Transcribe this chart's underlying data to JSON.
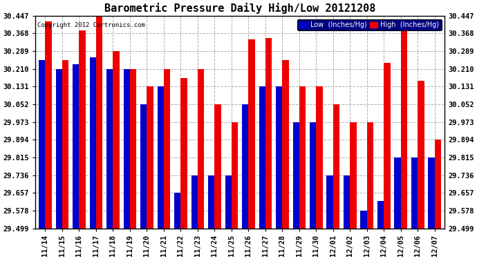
{
  "title": "Barometric Pressure Daily High/Low 20121208",
  "copyright": "Copyright 2012 Cartronics.com",
  "dates": [
    "11/14",
    "11/15",
    "11/16",
    "11/17",
    "11/18",
    "11/19",
    "11/20",
    "11/21",
    "11/22",
    "11/23",
    "11/24",
    "11/25",
    "11/26",
    "11/27",
    "11/28",
    "11/29",
    "11/30",
    "12/01",
    "12/02",
    "12/03",
    "12/04",
    "12/05",
    "12/06",
    "12/07"
  ],
  "low": [
    30.25,
    30.21,
    30.23,
    30.26,
    30.21,
    30.21,
    30.052,
    30.131,
    29.657,
    29.736,
    29.736,
    29.736,
    30.052,
    30.131,
    30.131,
    29.973,
    29.973,
    29.736,
    29.736,
    29.578,
    29.62,
    29.815,
    29.815,
    29.815
  ],
  "high": [
    30.42,
    30.25,
    30.38,
    30.447,
    30.289,
    30.21,
    30.131,
    30.21,
    30.168,
    30.21,
    30.052,
    29.973,
    30.34,
    30.349,
    30.25,
    30.131,
    30.131,
    30.052,
    29.973,
    29.973,
    30.236,
    30.42,
    30.158,
    29.894
  ],
  "ylim_min": 29.499,
  "ylim_max": 30.447,
  "yticks": [
    29.499,
    29.578,
    29.657,
    29.736,
    29.815,
    29.894,
    29.973,
    30.052,
    30.131,
    30.21,
    30.289,
    30.368,
    30.447
  ],
  "bar_width": 0.38,
  "low_color": "#0000cc",
  "high_color": "#ee0000",
  "bg_color": "#ffffff",
  "grid_color": "#999999",
  "title_fontsize": 11,
  "tick_fontsize": 7.5,
  "legend_low_label": "Low  (Inches/Hg)",
  "legend_high_label": "High  (Inches/Hg)"
}
